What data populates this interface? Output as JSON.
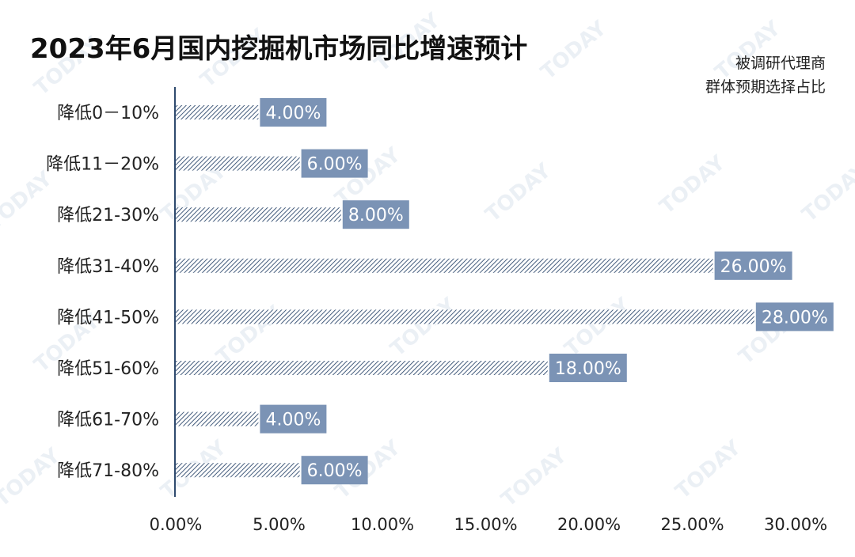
{
  "chart_data": {
    "type": "bar",
    "orientation": "horizontal",
    "title": "2023年6月国内挖掘机市场同比增速预计",
    "subtitle_lines": [
      "被调研代理商",
      "群体预期选择占比"
    ],
    "categories": [
      "降低0－10%",
      "降低11－20%",
      "降低21-30%",
      "降低31-40%",
      "降低41-50%",
      "降低51-60%",
      "降低61-70%",
      "降低71-80%"
    ],
    "values": [
      4.0,
      6.0,
      8.0,
      26.0,
      28.0,
      18.0,
      4.0,
      6.0
    ],
    "data_labels": [
      "4.00%",
      "6.00%",
      "8.00%",
      "26.00%",
      "28.00%",
      "18.00%",
      "4.00%",
      "6.00%"
    ],
    "xlim": [
      0,
      30
    ],
    "xticks": [
      0,
      5,
      10,
      15,
      20,
      25,
      30
    ],
    "xtick_labels": [
      "0.00%",
      "5.00%",
      "10.00%",
      "15.00%",
      "20.00%",
      "25.00%",
      "30.00%"
    ],
    "grid": false,
    "colors": {
      "bar_hatch": "#2f4a6e",
      "label_box": "#7b93b5",
      "axis": "#2f4a6e"
    },
    "watermark": "TODAY"
  }
}
